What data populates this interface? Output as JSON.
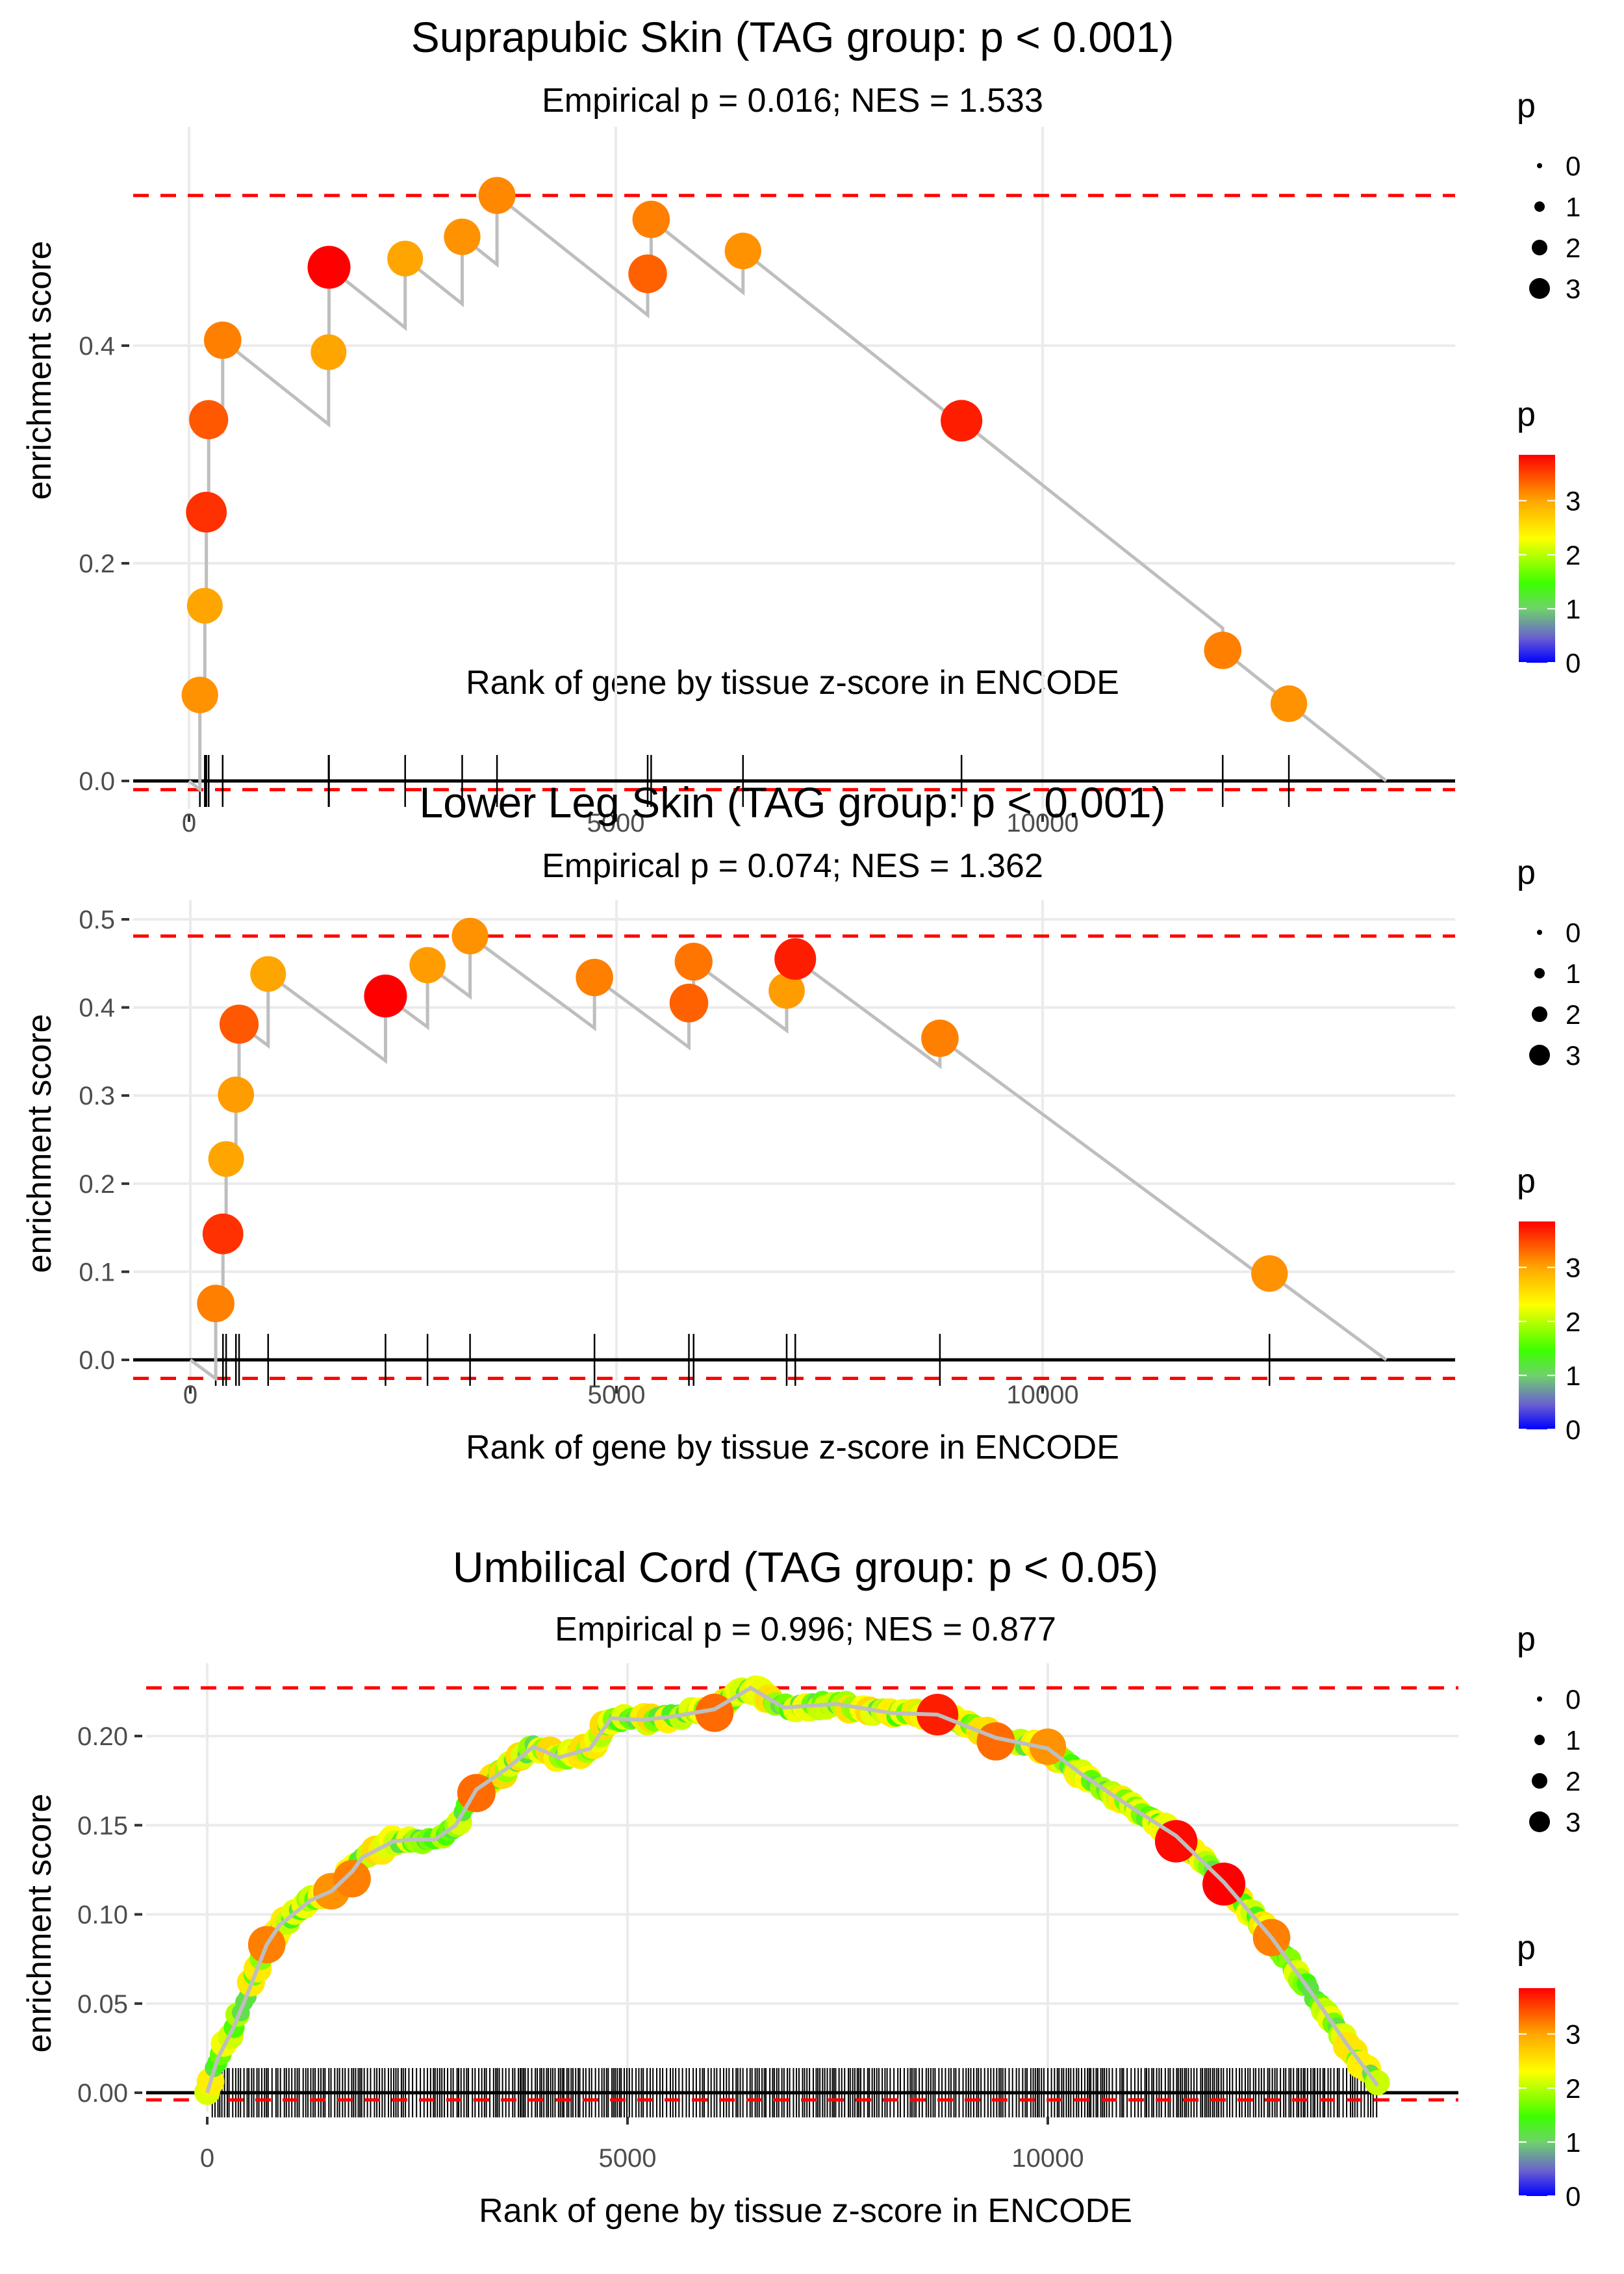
{
  "chart_data": [
    {
      "type": "line",
      "title": "Suprapubic Skin (TAG group: p < 0.001)",
      "subtitle": "Empirical p = 0.016; NES = 1.533",
      "xlabel": "Rank of gene by tissue z-score in ENCODE",
      "ylabel": "enrichment score",
      "xlim": [
        -400,
        14800
      ],
      "ylim": [
        -0.04,
        0.56
      ],
      "xticks": [
        0,
        5000,
        10000
      ],
      "xtick_labels": [
        "0",
        "5000",
        "10000"
      ],
      "yticks": [
        0.0,
        0.2,
        0.4
      ],
      "ytick_labels": [
        "0.0",
        "0.2",
        "0.4"
      ],
      "max_es_line": 0.538,
      "min_es_line": -0.008,
      "end_rank": 14025,
      "hits": [
        {
          "rank": 127,
          "es": 0.079,
          "p": 3.1
        },
        {
          "rank": 185,
          "es": 0.161,
          "p": 3.0
        },
        {
          "rank": 203,
          "es": 0.247,
          "p": 3.6
        },
        {
          "rank": 230,
          "es": 0.332,
          "p": 3.4
        },
        {
          "rank": 394,
          "es": 0.405,
          "p": 3.2
        },
        {
          "rank": 1635,
          "es": 0.394,
          "p": 3.0
        },
        {
          "rank": 1640,
          "es": 0.472,
          "p": 3.85
        },
        {
          "rank": 2532,
          "es": 0.48,
          "p": 3.0
        },
        {
          "rank": 3200,
          "es": 0.5,
          "p": 3.1
        },
        {
          "rank": 3608,
          "es": 0.538,
          "p": 3.15
        },
        {
          "rank": 5373,
          "es": 0.466,
          "p": 3.35
        },
        {
          "rank": 5414,
          "es": 0.516,
          "p": 3.2
        },
        {
          "rank": 6490,
          "es": 0.487,
          "p": 3.1
        },
        {
          "rank": 9050,
          "es": 0.331,
          "p": 3.7
        },
        {
          "rank": 12110,
          "es": 0.12,
          "p": 3.2
        },
        {
          "rank": 12885,
          "es": 0.071,
          "p": 3.1
        }
      ]
    },
    {
      "type": "line",
      "title": "Lower Leg Skin (TAG group: p < 0.001)",
      "subtitle": "Empirical p = 0.074; NES = 1.362",
      "xlabel": "Rank of gene by tissue z-score in ENCODE",
      "ylabel": "enrichment score",
      "xlim": [
        -400,
        14800
      ],
      "ylim": [
        -0.04,
        0.51
      ],
      "xticks": [
        0,
        5000,
        10000
      ],
      "xtick_labels": [
        "0",
        "5000",
        "10000"
      ],
      "yticks": [
        0.0,
        0.1,
        0.2,
        0.3,
        0.4,
        0.5
      ],
      "ytick_labels": [
        "0.0",
        "0.1",
        "0.2",
        "0.3",
        "0.4",
        "0.5"
      ],
      "max_es_line": 0.481,
      "min_es_line": -0.021,
      "end_rank": 14032,
      "hits": [
        {
          "rank": 298,
          "es": 0.064,
          "p": 3.2
        },
        {
          "rank": 383,
          "es": 0.143,
          "p": 3.6
        },
        {
          "rank": 420,
          "es": 0.228,
          "p": 3.0
        },
        {
          "rank": 535,
          "es": 0.301,
          "p": 3.05
        },
        {
          "rank": 572,
          "es": 0.381,
          "p": 3.4
        },
        {
          "rank": 913,
          "es": 0.438,
          "p": 3.0
        },
        {
          "rank": 2290,
          "es": 0.413,
          "p": 3.85
        },
        {
          "rank": 2783,
          "es": 0.448,
          "p": 3.05
        },
        {
          "rank": 3282,
          "es": 0.481,
          "p": 3.1
        },
        {
          "rank": 4742,
          "es": 0.434,
          "p": 3.2
        },
        {
          "rank": 5850,
          "es": 0.405,
          "p": 3.35
        },
        {
          "rank": 5905,
          "es": 0.452,
          "p": 3.25
        },
        {
          "rank": 6997,
          "es": 0.419,
          "p": 3.05
        },
        {
          "rank": 7098,
          "es": 0.455,
          "p": 3.7
        },
        {
          "rank": 8795,
          "es": 0.365,
          "p": 3.2
        },
        {
          "rank": 12662,
          "es": 0.098,
          "p": 3.1
        }
      ]
    },
    {
      "type": "line",
      "title": "Umbilical Cord (TAG group: p < 0.05)",
      "subtitle": "Empirical p = 0.996; NES = 0.877",
      "xlabel": "Rank of gene by tissue z-score in ENCODE",
      "ylabel": "enrichment score",
      "xlim": [
        -400,
        14800
      ],
      "ylim": [
        -0.011,
        0.234
      ],
      "xticks": [
        0,
        5000,
        10000
      ],
      "xtick_labels": [
        "0",
        "5000",
        "10000"
      ],
      "yticks": [
        0.0,
        0.05,
        0.1,
        0.15,
        0.2
      ],
      "ytick_labels": [
        "0.00",
        "0.05",
        "0.10",
        "0.15",
        "0.20"
      ],
      "max_es_line": 0.227,
      "min_es_line": -0.004,
      "end_rank": 13924,
      "dense": true,
      "curve": [
        {
          "rank": 0,
          "es": 0.0
        },
        {
          "rank": 123,
          "es": 0.019
        },
        {
          "rank": 308,
          "es": 0.036
        },
        {
          "rank": 493,
          "es": 0.057
        },
        {
          "rank": 708,
          "es": 0.083
        },
        {
          "rank": 862,
          "es": 0.094
        },
        {
          "rank": 1232,
          "es": 0.108
        },
        {
          "rank": 1478,
          "es": 0.113
        },
        {
          "rank": 1724,
          "es": 0.124
        },
        {
          "rank": 1847,
          "es": 0.132
        },
        {
          "rank": 2217,
          "es": 0.141
        },
        {
          "rank": 2463,
          "es": 0.142
        },
        {
          "rank": 2709,
          "es": 0.142
        },
        {
          "rank": 2956,
          "es": 0.15
        },
        {
          "rank": 3202,
          "es": 0.17
        },
        {
          "rank": 3571,
          "es": 0.182
        },
        {
          "rank": 3879,
          "es": 0.194
        },
        {
          "rank": 4187,
          "es": 0.188
        },
        {
          "rank": 4557,
          "es": 0.193
        },
        {
          "rank": 4803,
          "es": 0.21
        },
        {
          "rank": 5172,
          "es": 0.209
        },
        {
          "rank": 5542,
          "es": 0.211
        },
        {
          "rank": 6034,
          "es": 0.215
        },
        {
          "rank": 6466,
          "es": 0.227
        },
        {
          "rank": 6858,
          "es": 0.216
        },
        {
          "rank": 7489,
          "es": 0.218
        },
        {
          "rank": 8120,
          "es": 0.213
        },
        {
          "rank": 8688,
          "es": 0.212
        },
        {
          "rank": 9382,
          "es": 0.199
        },
        {
          "rank": 10000,
          "es": 0.193
        },
        {
          "rank": 10391,
          "es": 0.179
        },
        {
          "rank": 10896,
          "es": 0.163
        },
        {
          "rank": 11527,
          "es": 0.144
        },
        {
          "rank": 12095,
          "es": 0.118
        },
        {
          "rank": 12662,
          "es": 0.087
        },
        {
          "rank": 13167,
          "es": 0.054
        },
        {
          "rank": 13546,
          "es": 0.028
        },
        {
          "rank": 13924,
          "es": 0.004
        }
      ],
      "highlighted": [
        {
          "rank": 708,
          "es": 0.083,
          "p": 3.2
        },
        {
          "rank": 1478,
          "es": 0.113,
          "p": 3.1
        },
        {
          "rank": 1724,
          "es": 0.12,
          "p": 3.2
        },
        {
          "rank": 3202,
          "es": 0.168,
          "p": 3.3
        },
        {
          "rank": 6034,
          "es": 0.213,
          "p": 3.3
        },
        {
          "rank": 8688,
          "es": 0.212,
          "p": 3.7
        },
        {
          "rank": 9382,
          "es": 0.197,
          "p": 3.3
        },
        {
          "rank": 10000,
          "es": 0.194,
          "p": 3.1
        },
        {
          "rank": 11527,
          "es": 0.141,
          "p": 3.8
        },
        {
          "rank": 12095,
          "es": 0.117,
          "p": 3.85
        },
        {
          "rank": 12662,
          "es": 0.087,
          "p": 3.2
        }
      ]
    }
  ],
  "legend": {
    "size_title": "p",
    "size_labels": [
      "0",
      "1",
      "2",
      "3"
    ],
    "color_title": "p",
    "color_labels": [
      "0",
      "1",
      "2",
      "3"
    ],
    "color_max": 3.85,
    "color_stops": [
      "#0000ff",
      "#8080a0",
      "#3cff00",
      "#ffff00",
      "#ffa500",
      "#ff0000"
    ]
  }
}
